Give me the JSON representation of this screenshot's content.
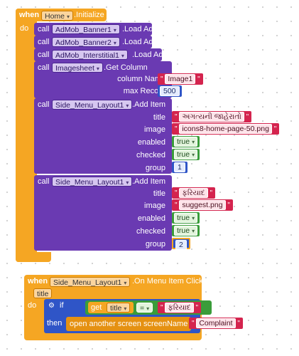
{
  "colors": {
    "event": "#f5a623",
    "component": "#6a3ab2",
    "text": "#d4244e",
    "logic": "#3a9c3a",
    "math": "#2f55c7"
  },
  "block1": {
    "when": "when",
    "component": "Home",
    "event": ".Initialize",
    "do": "do",
    "calls": [
      {
        "call": "call",
        "component": "AdMob_Banner1",
        "method": ".Load Ad"
      },
      {
        "call": "call",
        "component": "AdMob_Banner2",
        "method": ".Load Ad"
      },
      {
        "call": "call",
        "component": "AdMob_Interstitial1",
        "method": ".Load Ad"
      }
    ],
    "imagesheet": {
      "call": "call",
      "component": "Imagesheet",
      "method": ".Get Column",
      "params": [
        {
          "label": "column Name",
          "value": "Image1"
        },
        {
          "label": "max Record",
          "value": "500"
        }
      ]
    },
    "add_items": [
      {
        "call": "call",
        "component": "Side_Menu_Layout1",
        "method": ".Add Item",
        "params": [
          {
            "label": "title",
            "value": "અગત્યની જાહેરાતો"
          },
          {
            "label": "image",
            "value": "icons8-home-page-50.png"
          },
          {
            "label": "enabled",
            "value": "true"
          },
          {
            "label": "checked",
            "value": "true"
          },
          {
            "label": "group",
            "value": "1"
          }
        ]
      },
      {
        "call": "call",
        "component": "Side_Menu_Layout1",
        "method": ".Add Item",
        "params": [
          {
            "label": "title",
            "value": "ફરિયાદ"
          },
          {
            "label": "image",
            "value": "suggest.png"
          },
          {
            "label": "enabled",
            "value": "true"
          },
          {
            "label": "checked",
            "value": "true"
          },
          {
            "label": "group",
            "value": "2"
          }
        ]
      }
    ]
  },
  "block2": {
    "when": "when",
    "component": "Side_Menu_Layout1",
    "event": ".On Menu Item Click",
    "param": "title",
    "do": "do",
    "if": "if",
    "get": "get",
    "get_var": "title",
    "op": "=",
    "compare_value": "ફરિયાદ",
    "then": "then",
    "action": "open another screen  screenName",
    "screen_name": "Complaint"
  }
}
